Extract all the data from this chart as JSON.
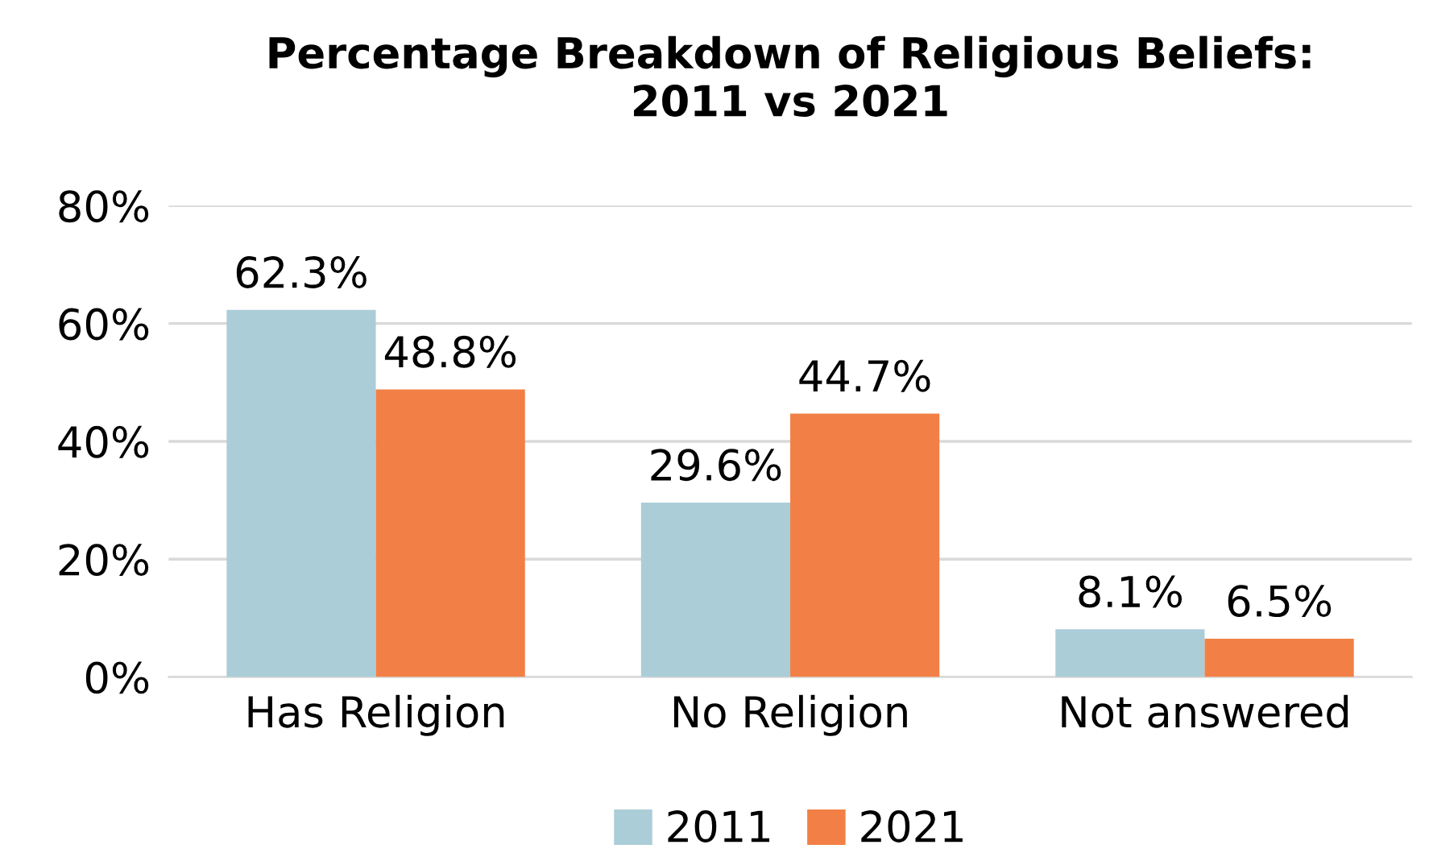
{
  "chart_data": {
    "type": "bar",
    "title": "Percentage Breakdown of Religious Beliefs:\n2011 vs 2021",
    "categories": [
      "Has Religion",
      "No Religion",
      "Not answered"
    ],
    "series": [
      {
        "name": "2011",
        "color": "#abcdd8",
        "values": [
          62.3,
          29.6,
          8.1
        ],
        "value_labels": [
          "62.3%",
          "29.6%",
          "8.1%"
        ]
      },
      {
        "name": "2021",
        "color": "#f28046",
        "values": [
          48.8,
          44.7,
          6.5
        ],
        "value_labels": [
          "48.8%",
          "44.7%",
          "6.5%"
        ]
      }
    ],
    "ylim": [
      0,
      80
    ],
    "yticks": [
      {
        "value": 0,
        "label": "0%"
      },
      {
        "value": 20,
        "label": "20%"
      },
      {
        "value": 40,
        "label": "40%"
      },
      {
        "value": 60,
        "label": "60%"
      },
      {
        "value": 80,
        "label": "80%"
      }
    ],
    "grid": "y",
    "legend": "bottom"
  }
}
